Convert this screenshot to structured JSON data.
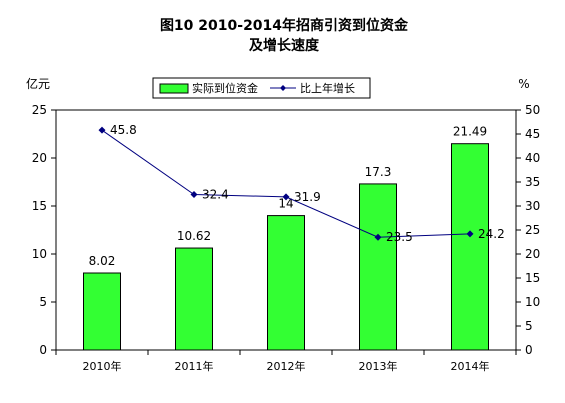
{
  "chart_data": {
    "type": "bar",
    "title": "图10  2010-2014年招商引资到位资金",
    "subtitle": "及增长速度",
    "categories": [
      "2010年",
      "2011年",
      "2012年",
      "2013年",
      "2014年"
    ],
    "y_left_unit": "亿元",
    "y_right_unit": "%",
    "ylim": [
      0,
      25
    ],
    "y_left_ticks": [
      "0",
      "5",
      "10",
      "15",
      "20",
      "25"
    ],
    "y2lim": [
      0,
      50
    ],
    "y_right_ticks": [
      "0",
      "5",
      "10",
      "15",
      "20",
      "25",
      "30",
      "35",
      "40",
      "45",
      "50"
    ],
    "legend_position": "top-center",
    "grid": false,
    "series": [
      {
        "name": "实际到位资金",
        "type": "bar",
        "axis": "left",
        "values": [
          8.02,
          10.62,
          14,
          17.3,
          21.49
        ],
        "labels": [
          "8.02",
          "10.62",
          "14",
          "17.3",
          "21.49"
        ],
        "color": "#33ff33"
      },
      {
        "name": "比上年增长",
        "type": "line",
        "axis": "right",
        "values": [
          45.8,
          32.4,
          31.9,
          23.5,
          24.2
        ],
        "labels": [
          "45.8",
          "32.4",
          "31.9",
          "23.5",
          "24.2"
        ],
        "color": "#000080"
      }
    ]
  }
}
